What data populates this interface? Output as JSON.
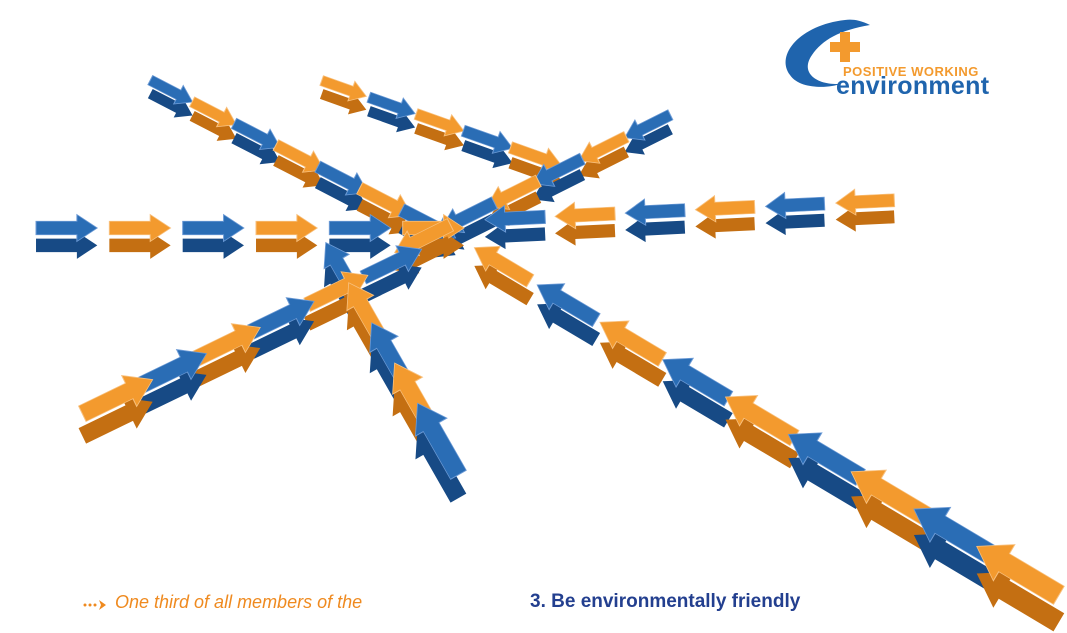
{
  "logo": {
    "line1": "POSITIVE WORKING",
    "line2": "environment"
  },
  "body": {
    "left_text": "One third of all members of the",
    "right_heading": "3. Be environmentally friendly"
  }
}
